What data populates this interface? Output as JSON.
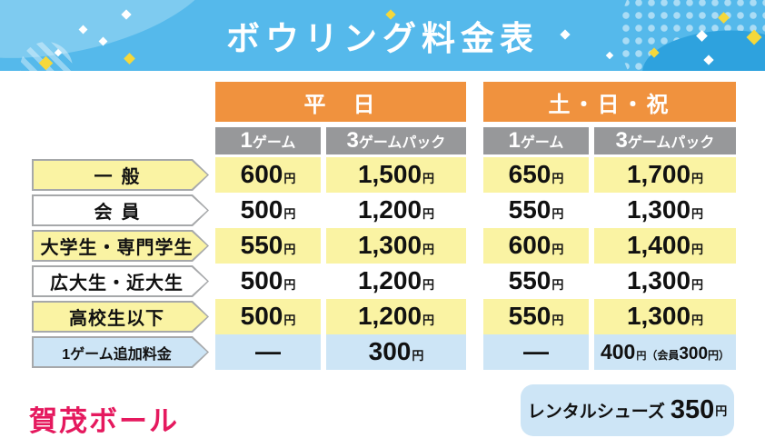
{
  "title": "ボウリング料金表",
  "table": {
    "group_headers": [
      {
        "label": "平　日"
      },
      {
        "label": "土・日・祝"
      }
    ],
    "sub_headers": [
      "1ゲーム",
      "3ゲームパック",
      "1ゲーム",
      "3ゲームパック"
    ],
    "rows": [
      {
        "label": "一般",
        "tone": "yellow",
        "cells": [
          {
            "main": "600",
            "suffix": "円"
          },
          {
            "main": "1,500",
            "suffix": "円"
          },
          {
            "main": "650",
            "suffix": "円"
          },
          {
            "main": "1,700",
            "suffix": "円"
          }
        ]
      },
      {
        "label": "会員",
        "tone": "white",
        "cells": [
          {
            "main": "500",
            "suffix": "円"
          },
          {
            "main": "1,200",
            "suffix": "円"
          },
          {
            "main": "550",
            "suffix": "円"
          },
          {
            "main": "1,300",
            "suffix": "円"
          }
        ]
      },
      {
        "label": "大学生・専門学生",
        "tone": "yellow",
        "cells": [
          {
            "main": "550",
            "suffix": "円"
          },
          {
            "main": "1,300",
            "suffix": "円"
          },
          {
            "main": "600",
            "suffix": "円"
          },
          {
            "main": "1,400",
            "suffix": "円"
          }
        ]
      },
      {
        "label": "広大生・近大生",
        "tone": "white",
        "cells": [
          {
            "main": "500",
            "suffix": "円"
          },
          {
            "main": "1,200",
            "suffix": "円"
          },
          {
            "main": "550",
            "suffix": "円"
          },
          {
            "main": "1,300",
            "suffix": "円"
          }
        ]
      },
      {
        "label": "高校生以下",
        "tone": "yellow",
        "cells": [
          {
            "main": "500",
            "suffix": "円"
          },
          {
            "main": "1,200",
            "suffix": "円"
          },
          {
            "main": "550",
            "suffix": "円"
          },
          {
            "main": "1,300",
            "suffix": "円"
          }
        ]
      },
      {
        "label": "1ゲーム追加料金",
        "tone": "blue",
        "small_label": true,
        "cells": [
          {
            "main": "—"
          },
          {
            "main": "300",
            "suffix": "円"
          },
          {
            "main": "—"
          },
          {
            "main": "400",
            "suffix": "円",
            "note": {
              "pre": "（会員",
              "num": "300",
              "post": "円）"
            }
          }
        ]
      }
    ]
  },
  "footer": {
    "brand": "賀茂ボール",
    "rental_label": "レンタルシューズ",
    "rental_price": "350",
    "rental_suffix": "円"
  },
  "colors": {
    "banner_blue": "#55B9EB",
    "header_orange": "#F0923E",
    "subheader_gray": "#97989A",
    "row_yellow": "#FAF3A3",
    "row_blue": "#CDE5F6",
    "brand_pink": "#E5195E",
    "confetti_yellow": "#F5D83B"
  }
}
